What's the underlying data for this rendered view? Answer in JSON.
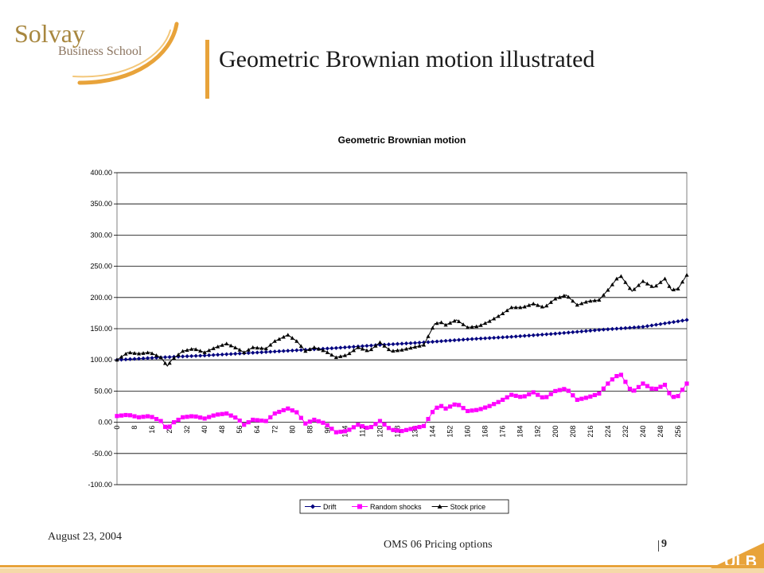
{
  "header": {
    "logo_word": "Solvay",
    "logo_sub": "Business School",
    "title": "Geometric Brownian motion illustrated"
  },
  "footer": {
    "date": "August 23, 2004",
    "course": "OMS 06 Pricing options",
    "page": "9",
    "ulb_logo": "ULB"
  },
  "colors": {
    "accent": "#e8a33a",
    "drift": "#00007f",
    "random_shocks": "#ff00ff",
    "stock_price": "#000000"
  },
  "chart_data": {
    "type": "line",
    "title": "Geometric Brownian motion",
    "xlabel": "",
    "ylabel": "",
    "ylim": [
      -100,
      400
    ],
    "xlim": [
      0,
      260
    ],
    "grid": true,
    "legend_position": "bottom",
    "y_ticks": [
      "400.00",
      "350.00",
      "300.00",
      "250.00",
      "200.00",
      "150.00",
      "100.00",
      "50.00",
      "0.00",
      "-50.00",
      "-100.00"
    ],
    "x_ticks": [
      0,
      8,
      16,
      24,
      32,
      40,
      48,
      56,
      64,
      72,
      80,
      88,
      96,
      104,
      112,
      120,
      128,
      136,
      144,
      152,
      160,
      168,
      176,
      184,
      192,
      200,
      208,
      216,
      224,
      232,
      240,
      248,
      256
    ],
    "series": [
      {
        "name": "Drift",
        "color": "#00007f",
        "marker": "diamond",
        "x": [
          0,
          20,
          40,
          60,
          80,
          100,
          120,
          140,
          160,
          180,
          200,
          220,
          240,
          260
        ],
        "values": [
          100,
          104,
          107,
          111,
          115,
          119,
          124,
          128,
          133,
          137,
          142,
          148,
          153,
          164
        ]
      },
      {
        "name": "Random shocks",
        "color": "#ff00ff",
        "marker": "square",
        "x": [
          0,
          5,
          10,
          15,
          20,
          23,
          25,
          30,
          35,
          40,
          45,
          50,
          55,
          58,
          62,
          68,
          72,
          78,
          82,
          86,
          90,
          95,
          100,
          105,
          110,
          115,
          120,
          125,
          130,
          135,
          140,
          145,
          148,
          150,
          155,
          160,
          165,
          170,
          175,
          180,
          185,
          190,
          195,
          200,
          205,
          210,
          215,
          220,
          225,
          228,
          230,
          235,
          240,
          245,
          250,
          253,
          256,
          260
        ],
        "values": [
          10,
          12,
          8,
          10,
          2,
          -12,
          -2,
          8,
          10,
          6,
          12,
          14,
          6,
          -4,
          4,
          2,
          14,
          22,
          16,
          -2,
          4,
          -2,
          -16,
          -14,
          -4,
          -10,
          2,
          -12,
          -14,
          -10,
          -6,
          22,
          26,
          22,
          30,
          18,
          20,
          26,
          34,
          44,
          40,
          48,
          38,
          50,
          54,
          36,
          40,
          46,
          66,
          74,
          76,
          48,
          62,
          52,
          60,
          40,
          42,
          62
        ]
      },
      {
        "name": "Stock price",
        "color": "#000000",
        "marker": "triangle",
        "x": [
          0,
          5,
          10,
          15,
          20,
          23,
          25,
          30,
          35,
          40,
          45,
          50,
          55,
          58,
          62,
          68,
          72,
          78,
          82,
          86,
          90,
          95,
          100,
          105,
          110,
          115,
          120,
          125,
          130,
          135,
          140,
          145,
          148,
          150,
          155,
          160,
          165,
          170,
          175,
          180,
          185,
          190,
          195,
          200,
          205,
          210,
          215,
          220,
          225,
          228,
          230,
          235,
          240,
          245,
          250,
          253,
          256,
          260
        ],
        "values": [
          100,
          112,
          110,
          112,
          104,
          90,
          100,
          114,
          118,
          112,
          120,
          126,
          118,
          112,
          120,
          118,
          130,
          140,
          130,
          114,
          120,
          114,
          104,
          108,
          120,
          114,
          128,
          114,
          116,
          120,
          124,
          158,
          160,
          156,
          164,
          152,
          154,
          162,
          172,
          184,
          184,
          190,
          184,
          198,
          204,
          188,
          194,
          196,
          216,
          230,
          234,
          210,
          226,
          216,
          230,
          212,
          214,
          236
        ]
      }
    ]
  }
}
